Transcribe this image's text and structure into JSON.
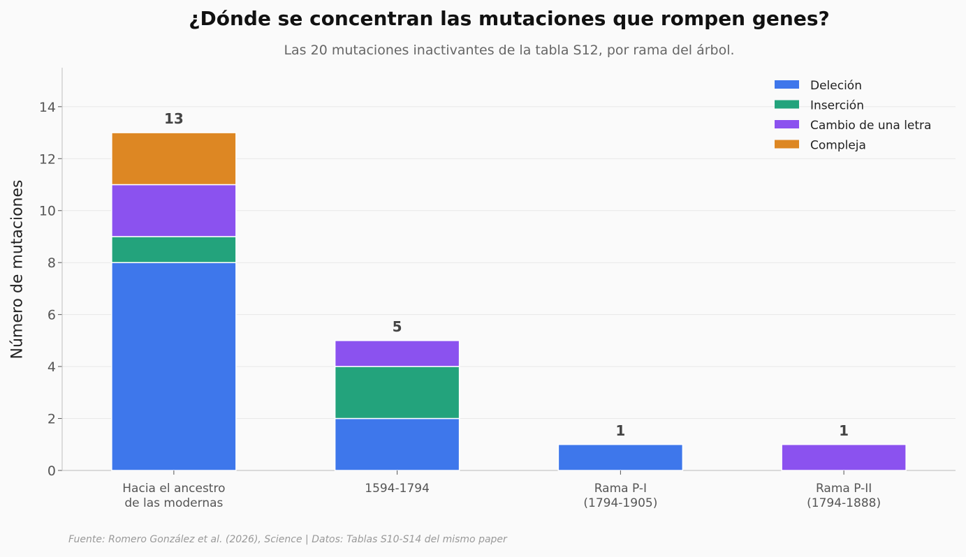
{
  "chart_data": {
    "type": "bar",
    "stacked": true,
    "title": "¿Dónde se concentran las mutaciones que rompen genes?",
    "subtitle": "Las 20 mutaciones inactivantes de la tabla S12, por rama del árbol.",
    "ylabel": "Número de mutaciones",
    "xlabel": "",
    "ylim": [
      0,
      15.5
    ],
    "yticks": [
      "0",
      "2",
      "4",
      "6",
      "8",
      "10",
      "12",
      "14"
    ],
    "categories": [
      [
        "Hacia el ancestro",
        "de las modernas"
      ],
      [
        "1594-1794"
      ],
      [
        "Rama P-I",
        "(1794-1905)"
      ],
      [
        "Rama P-II",
        "(1794-1888)"
      ]
    ],
    "series": [
      {
        "name": "Deleción",
        "color": "#3e77eb",
        "values": [
          8,
          2,
          1,
          0
        ]
      },
      {
        "name": "Inserción",
        "color": "#23a37c",
        "values": [
          1,
          2,
          0,
          0
        ]
      },
      {
        "name": "Cambio de una letra",
        "color": "#8b52ef",
        "values": [
          2,
          1,
          0,
          1
        ]
      },
      {
        "name": "Compleja",
        "color": "#dd8723",
        "values": [
          2,
          0,
          0,
          0
        ]
      }
    ],
    "totals": [
      "13",
      "5",
      "1",
      "1"
    ],
    "grid": "horizontal",
    "legend_position": "top-right"
  },
  "footer": "Fuente: Romero González et al. (2026), Science | Datos: Tablas S10-S14 del mismo paper"
}
